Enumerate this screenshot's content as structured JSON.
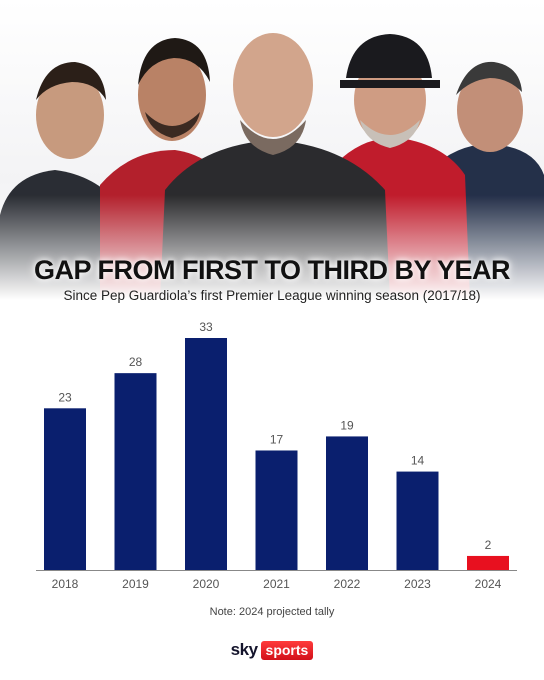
{
  "header": {
    "title": "GAP FROM FIRST TO THIRD BY YEAR",
    "subtitle": "Since Pep Guardiola’s first Premier League winning season (2017/18)"
  },
  "chart_data": {
    "type": "bar",
    "categories": [
      "2018",
      "2019",
      "2020",
      "2021",
      "2022",
      "2023",
      "2024"
    ],
    "values": [
      23,
      28,
      33,
      17,
      19,
      14,
      2
    ],
    "data_labels": [
      "23",
      "28",
      "33",
      "17",
      "19",
      "14",
      "2"
    ],
    "highlight_category": "2024",
    "ylim": [
      0,
      33
    ],
    "grid": false,
    "legend": "none",
    "colors": {
      "bar": "#0a1f6e",
      "highlight": "#e8101f",
      "axis": "#888888",
      "label": "#555555"
    }
  },
  "note": "Note: 2024 projected tally",
  "logo": {
    "sky": "sky",
    "sports": "sports"
  },
  "colors": {
    "title": "#111111",
    "brand_red": "#e8101f"
  },
  "photo": {
    "figures": [
      "person-silhouette",
      "person-silhouette",
      "person-silhouette",
      "person-silhouette",
      "person-silhouette"
    ]
  }
}
